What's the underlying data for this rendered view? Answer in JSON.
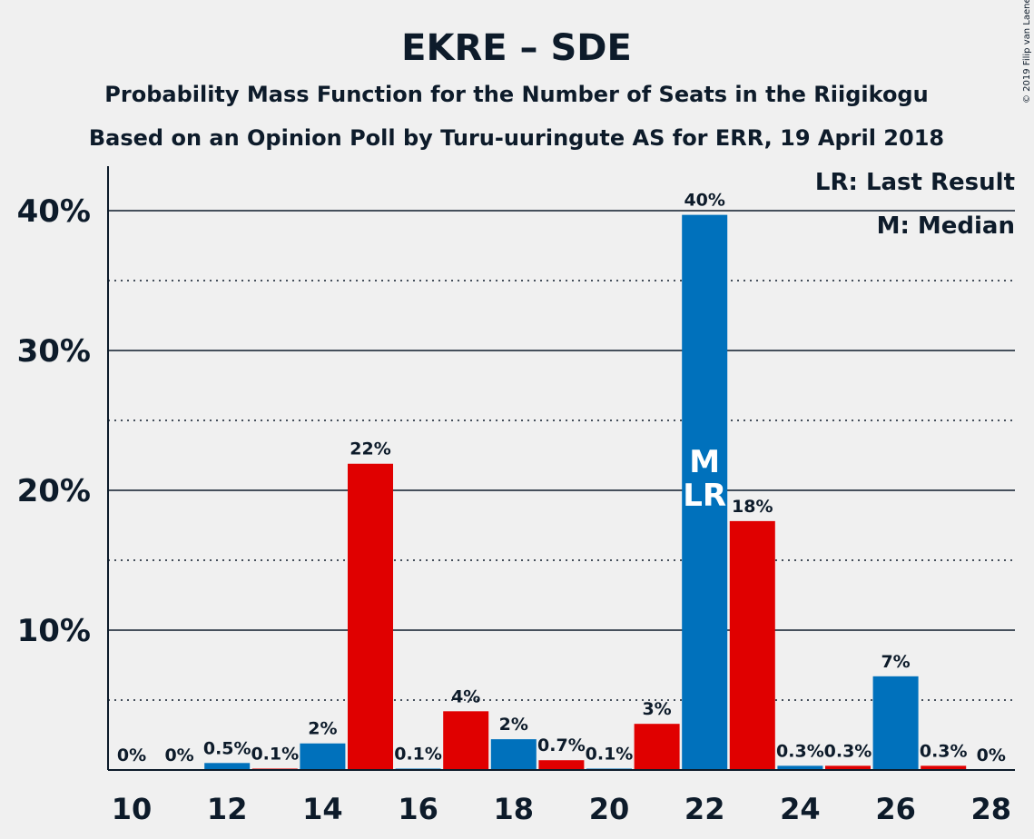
{
  "chart_data": {
    "type": "bar",
    "title": "EKRE – SDE",
    "subtitle": "Probability Mass Function for the Number of Seats in the Riigikogu",
    "subtitle2": "Based on an Opinion Poll by Turu-uuringute AS for ERR, 19 April 2018",
    "copyright": "© 2019 Filip van Laenen",
    "legend": [
      "LR: Last Result",
      "M: Median"
    ],
    "ylim": [
      0,
      43
    ],
    "yticks": [
      {
        "value": 10,
        "label": "10%"
      },
      {
        "value": 20,
        "label": "20%"
      },
      {
        "value": 30,
        "label": "30%"
      },
      {
        "value": 40,
        "label": "40%"
      }
    ],
    "xticks": [
      10,
      12,
      14,
      16,
      18,
      20,
      22,
      24,
      26,
      28
    ],
    "colors": {
      "blue": "#0071bc",
      "red": "#e00000",
      "text": "#0d1b2a",
      "background": "#f0f0f0"
    },
    "bars": [
      {
        "seats": 10,
        "value": 0,
        "label": "0%",
        "color": "blue"
      },
      {
        "seats": 11,
        "value": 0,
        "label": "0%",
        "color": "red"
      },
      {
        "seats": 12,
        "value": 0.5,
        "label": "0.5%",
        "color": "blue"
      },
      {
        "seats": 13,
        "value": 0.1,
        "label": "0.1%",
        "color": "red"
      },
      {
        "seats": 14,
        "value": 1.9,
        "label": "2%",
        "color": "blue"
      },
      {
        "seats": 15,
        "value": 21.9,
        "label": "22%",
        "color": "red"
      },
      {
        "seats": 16,
        "value": 0.1,
        "label": "0.1%",
        "color": "blue"
      },
      {
        "seats": 17,
        "value": 4.2,
        "label": "4%",
        "color": "red"
      },
      {
        "seats": 18,
        "value": 2.2,
        "label": "2%",
        "color": "blue"
      },
      {
        "seats": 19,
        "value": 0.7,
        "label": "0.7%",
        "color": "red"
      },
      {
        "seats": 20,
        "value": 0.1,
        "label": "0.1%",
        "color": "blue"
      },
      {
        "seats": 21,
        "value": 3.3,
        "label": "3%",
        "color": "red"
      },
      {
        "seats": 22,
        "value": 39.7,
        "label": "40%",
        "color": "blue",
        "markers": [
          "M",
          "LR"
        ]
      },
      {
        "seats": 23,
        "value": 17.8,
        "label": "18%",
        "color": "red"
      },
      {
        "seats": 24,
        "value": 0.3,
        "label": "0.3%",
        "color": "blue"
      },
      {
        "seats": 25,
        "value": 0.3,
        "label": "0.3%",
        "color": "red"
      },
      {
        "seats": 26,
        "value": 6.7,
        "label": "7%",
        "color": "blue"
      },
      {
        "seats": 27,
        "value": 0.3,
        "label": "0.3%",
        "color": "red"
      },
      {
        "seats": 28,
        "value": 0,
        "label": "0%",
        "color": "blue"
      }
    ]
  }
}
